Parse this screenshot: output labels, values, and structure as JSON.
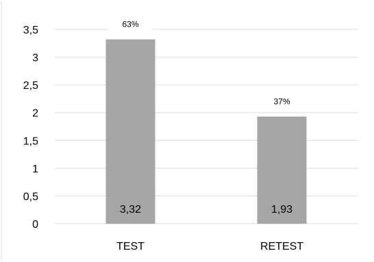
{
  "chart_data": {
    "type": "bar",
    "categories": [
      "TEST",
      "RETEST"
    ],
    "values": [
      3.32,
      1.93
    ],
    "value_labels": [
      "3,32",
      "1,93"
    ],
    "percent_labels": [
      "63%",
      "37%"
    ],
    "yticks": [
      "0",
      "0,5",
      "1",
      "1,5",
      "2",
      "2,5",
      "3",
      "3,5"
    ],
    "ylim": [
      0,
      3.5
    ],
    "grid": true,
    "title": "",
    "xlabel": "",
    "ylabel": "",
    "bar_color": "#a6a6a6"
  }
}
